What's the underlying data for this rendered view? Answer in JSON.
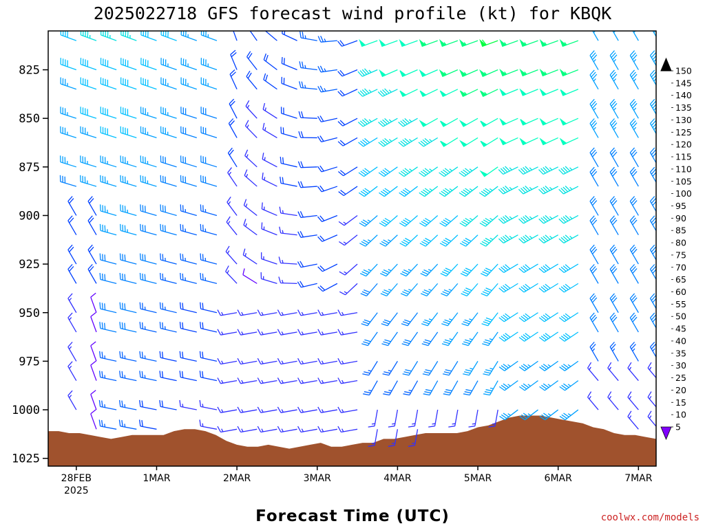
{
  "title": "2025022718 GFS forecast wind profile (kt) for KBQK",
  "xlabel": "Forecast Time (UTC)",
  "credit": "coolwx.com/models",
  "chart_data": {
    "type": "wind-barb-profile",
    "y_axis": {
      "reversed": true,
      "ylim": [
        805,
        1029
      ],
      "ticks": [
        825,
        850,
        875,
        900,
        925,
        950,
        975,
        1000,
        1025
      ]
    },
    "x_axis": {
      "xlim": [
        -0.35,
        7.22
      ],
      "ticks": [
        {
          "day": 0,
          "label": "28FEB",
          "sub": "2025"
        },
        {
          "day": 1,
          "label": "1MAR",
          "sub": ""
        },
        {
          "day": 2,
          "label": "2MAR",
          "sub": ""
        },
        {
          "day": 3,
          "label": "3MAR",
          "sub": ""
        },
        {
          "day": 4,
          "label": "4MAR",
          "sub": ""
        },
        {
          "day": 5,
          "label": "5MAR",
          "sub": ""
        },
        {
          "day": 6,
          "label": "6MAR",
          "sub": ""
        },
        {
          "day": 7,
          "label": "7MAR",
          "sub": ""
        }
      ]
    },
    "levels": [
      810,
      825,
      835,
      850,
      860,
      875,
      885,
      900,
      910,
      925,
      935,
      950,
      960,
      975,
      985,
      1000,
      1010
    ],
    "times_step_hours": 6,
    "time_count": 30,
    "surface_pressure": [
      1011,
      1011,
      1012,
      1012,
      1013,
      1014,
      1015,
      1014,
      1013,
      1013,
      1013,
      1013,
      1011,
      1010,
      1010,
      1011,
      1013,
      1016,
      1018,
      1019,
      1019,
      1018,
      1019,
      1020,
      1019,
      1018,
      1017,
      1019,
      1019,
      1018,
      1017,
      1017,
      1015,
      1015,
      1014,
      1013,
      1012,
      1012,
      1012,
      1012,
      1011,
      1009,
      1008,
      1006,
      1004,
      1003,
      1003,
      1003,
      1004,
      1005,
      1006,
      1007,
      1009,
      1010,
      1012,
      1013,
      1013,
      1014,
      1015
    ],
    "colorbar": {
      "labels": [
        5,
        10,
        15,
        20,
        25,
        30,
        35,
        40,
        45,
        50,
        55,
        60,
        65,
        70,
        75,
        80,
        85,
        90,
        95,
        100,
        105,
        110,
        115,
        120,
        125,
        130,
        135,
        140,
        145,
        150
      ],
      "colors": [
        "#8000ff",
        "#6000ff",
        "#3030ff",
        "#0040ff",
        "#0060ff",
        "#0080ff",
        "#00a0ff",
        "#00c0ff",
        "#00e0e0",
        "#00ffc0",
        "#00ff80",
        "#00ff40",
        "#40ff00",
        "#80ff00",
        "#c0ff00",
        "#ffff00",
        "#ffe000",
        "#ffc000",
        "#ffa000",
        "#ff8800",
        "#ff7000",
        "#ff5800",
        "#ff4000",
        "#ff0000",
        "#ff0040",
        "#ff0080",
        "#ff00a0",
        "#ff00c0",
        "#ff00e0",
        "#ff00ff"
      ]
    },
    "barb_legend": "wind speed in knots"
  }
}
